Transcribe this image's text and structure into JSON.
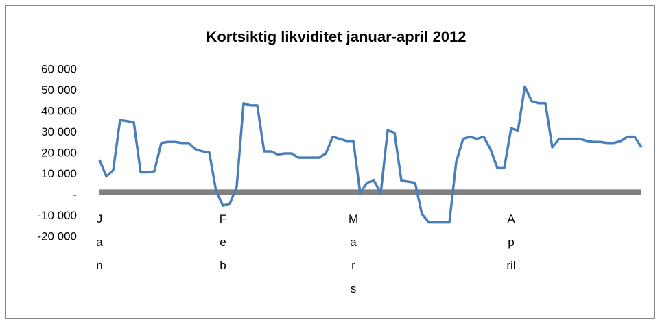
{
  "chart_data": {
    "type": "line",
    "title": "Kortsiktig likviditet januar-april 2012",
    "categories": [
      "Jan",
      null,
      null,
      null,
      null,
      null,
      null,
      null,
      null,
      null,
      null,
      null,
      null,
      null,
      null,
      null,
      null,
      null,
      "Feb",
      null,
      null,
      null,
      null,
      null,
      null,
      null,
      null,
      null,
      null,
      null,
      null,
      null,
      null,
      null,
      null,
      null,
      null,
      "Mars",
      null,
      null,
      null,
      null,
      null,
      null,
      null,
      null,
      null,
      null,
      null,
      null,
      null,
      null,
      null,
      null,
      null,
      null,
      null,
      null,
      null,
      null,
      "April",
      null,
      null,
      null,
      null,
      null,
      null,
      null,
      null,
      null,
      null,
      null,
      null,
      null,
      null,
      null,
      null,
      null,
      null,
      null
    ],
    "series": [
      {
        "color": "#4a7ebb",
        "width": 3.5,
        "values": [
          17000,
          9000,
          12000,
          36000,
          35500,
          35000,
          11000,
          11000,
          11500,
          25000,
          25500,
          25500,
          25000,
          25000,
          22000,
          21000,
          20500,
          2000,
          -5000,
          -4000,
          4000,
          44000,
          43000,
          43000,
          21000,
          21000,
          19500,
          20000,
          20000,
          18000,
          18000,
          18000,
          18000,
          20000,
          28000,
          27000,
          26000,
          26000,
          1000,
          6000,
          7000,
          1000,
          31000,
          30000,
          7000,
          6500,
          6000,
          -9000,
          -13000,
          -13000,
          -13000,
          -13000,
          16000,
          27000,
          28000,
          27000,
          28000,
          22000,
          13000,
          13000,
          32000,
          31000,
          52000,
          45000,
          44000,
          44000,
          23000,
          27000,
          27000,
          27000,
          27000,
          26000,
          25500,
          25500,
          25000,
          25000,
          26000,
          28000,
          28000,
          23000
        ]
      },
      {
        "color": "#808080",
        "width": 8,
        "values": [
          1500,
          1500,
          1500,
          1500,
          1500,
          1500,
          1500,
          1500,
          1500,
          1500,
          1500,
          1500,
          1500,
          1500,
          1500,
          1500,
          1500,
          1500,
          1500,
          1500,
          1500,
          1500,
          1500,
          1500,
          1500,
          1500,
          1500,
          1500,
          1500,
          1500,
          1500,
          1500,
          1500,
          1500,
          1500,
          1500,
          1500,
          1500,
          1500,
          1500,
          1500,
          1500,
          1500,
          1500,
          1500,
          1500,
          1500,
          1500,
          1500,
          1500,
          1500,
          1500,
          1500,
          1500,
          1500,
          1500,
          1500,
          1500,
          1500,
          1500,
          1500,
          1500,
          1500,
          1500,
          1500,
          1500,
          1500,
          1500,
          1500,
          1500,
          1500,
          1500,
          1500,
          1500,
          1500,
          1500,
          1500,
          1500,
          1500,
          1500
        ]
      }
    ],
    "ylim": [
      -20000,
      60000
    ],
    "yticks": [
      {
        "value": -20000,
        "label": "-20 000"
      },
      {
        "value": -10000,
        "label": "-10 000"
      },
      {
        "value": 0,
        "label": "-"
      },
      {
        "value": 10000,
        "label": "10 000"
      },
      {
        "value": 20000,
        "label": "20 000"
      },
      {
        "value": 30000,
        "label": "30 000"
      },
      {
        "value": 40000,
        "label": "40 000"
      },
      {
        "value": 50000,
        "label": "50 000"
      },
      {
        "value": 60000,
        "label": "60 000"
      }
    ],
    "grid": false
  }
}
